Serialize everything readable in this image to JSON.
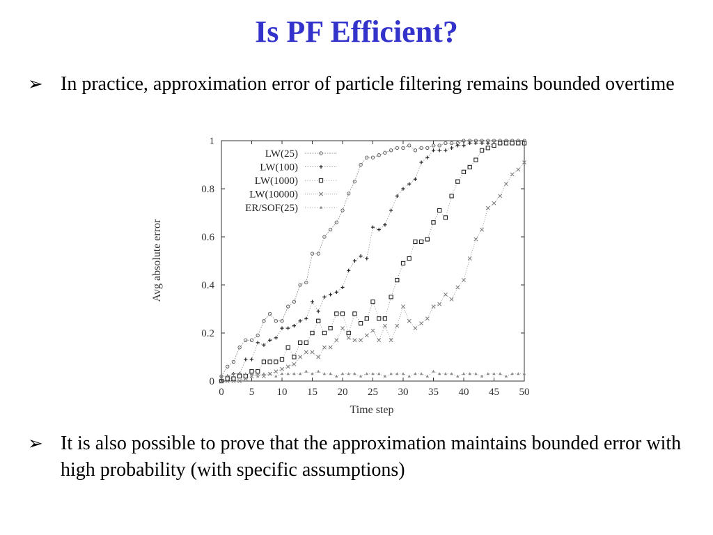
{
  "slide": {
    "title": "Is PF Efficient?",
    "bullets": [
      {
        "marker": "➢",
        "text": "In practice, approximation error of particle filtering remains bounded overtime"
      },
      {
        "marker": "➢",
        "text": "It is also possible to prove that the approximation maintains bounded error with high probability (with specific assumptions)"
      }
    ]
  },
  "chart_data": {
    "type": "line",
    "title": "",
    "xlabel": "Time step",
    "ylabel": "Avg absolute error",
    "xlim": [
      0,
      50
    ],
    "ylim": [
      0,
      1
    ],
    "xticks": [
      0,
      5,
      10,
      15,
      20,
      25,
      30,
      35,
      40,
      45,
      50
    ],
    "yticks": [
      0,
      0.2,
      0.4,
      0.6,
      0.8,
      1
    ],
    "grid": false,
    "legend_position": "top-left",
    "x": [
      0,
      1,
      2,
      3,
      4,
      5,
      6,
      7,
      8,
      9,
      10,
      11,
      12,
      13,
      14,
      15,
      16,
      17,
      18,
      19,
      20,
      21,
      22,
      23,
      24,
      25,
      26,
      27,
      28,
      29,
      30,
      31,
      32,
      33,
      34,
      35,
      36,
      37,
      38,
      39,
      40,
      41,
      42,
      43,
      44,
      45,
      46,
      47,
      48,
      49,
      50
    ],
    "series": [
      {
        "name": "LW(25)",
        "marker": "circle-dot",
        "values": [
          0.02,
          0.06,
          0.08,
          0.14,
          0.17,
          0.17,
          0.19,
          0.25,
          0.28,
          0.25,
          0.25,
          0.31,
          0.33,
          0.4,
          0.41,
          0.53,
          0.53,
          0.6,
          0.63,
          0.66,
          0.71,
          0.78,
          0.83,
          0.9,
          0.93,
          0.93,
          0.94,
          0.95,
          0.96,
          0.97,
          0.97,
          0.98,
          0.96,
          0.97,
          0.97,
          0.98,
          0.98,
          0.99,
          0.99,
          0.99,
          1.0,
          1.0,
          1.0,
          1.0,
          1.0,
          1.0,
          1.0,
          1.0,
          1.0,
          1.0,
          1.0
        ]
      },
      {
        "name": "LW(100)",
        "marker": "plus",
        "values": [
          0.0,
          0.02,
          0.03,
          0.03,
          0.09,
          0.09,
          0.16,
          0.15,
          0.17,
          0.18,
          0.22,
          0.22,
          0.23,
          0.25,
          0.26,
          0.33,
          0.29,
          0.35,
          0.36,
          0.37,
          0.39,
          0.46,
          0.5,
          0.52,
          0.51,
          0.64,
          0.63,
          0.65,
          0.71,
          0.77,
          0.8,
          0.82,
          0.84,
          0.91,
          0.93,
          0.96,
          0.96,
          0.96,
          0.97,
          0.98,
          0.98,
          0.99,
          0.99,
          0.99,
          0.99,
          0.98,
          0.99,
          0.99,
          0.99,
          0.99,
          0.99
        ]
      },
      {
        "name": "LW(1000)",
        "marker": "square",
        "values": [
          0.0,
          0.01,
          0.01,
          0.02,
          0.02,
          0.04,
          0.04,
          0.08,
          0.08,
          0.08,
          0.09,
          0.14,
          0.1,
          0.16,
          0.16,
          0.2,
          0.25,
          0.2,
          0.22,
          0.28,
          0.28,
          0.2,
          0.28,
          0.24,
          0.26,
          0.33,
          0.26,
          0.26,
          0.35,
          0.42,
          0.49,
          0.51,
          0.58,
          0.58,
          0.59,
          0.66,
          0.71,
          0.68,
          0.77,
          0.83,
          0.87,
          0.89,
          0.92,
          0.96,
          0.97,
          0.98,
          0.99,
          0.99,
          0.99,
          0.99,
          0.99
        ]
      },
      {
        "name": "LW(10000)",
        "marker": "x",
        "values": [
          0.0,
          0.0,
          0.0,
          0.0,
          0.01,
          0.02,
          0.03,
          0.02,
          0.03,
          0.04,
          0.05,
          0.06,
          0.07,
          0.1,
          0.12,
          0.12,
          0.1,
          0.14,
          0.14,
          0.17,
          0.22,
          0.18,
          0.17,
          0.17,
          0.19,
          0.21,
          0.17,
          0.23,
          0.17,
          0.23,
          0.31,
          0.25,
          0.22,
          0.24,
          0.26,
          0.31,
          0.32,
          0.36,
          0.34,
          0.39,
          0.42,
          0.51,
          0.59,
          0.63,
          0.72,
          0.74,
          0.77,
          0.82,
          0.86,
          0.88,
          0.91
        ]
      },
      {
        "name": "ER/SOF(25)",
        "marker": "triangle",
        "values": [
          0.02,
          0.02,
          0.03,
          0.03,
          0.03,
          0.03,
          0.02,
          0.03,
          0.03,
          0.02,
          0.03,
          0.03,
          0.03,
          0.03,
          0.04,
          0.03,
          0.04,
          0.03,
          0.03,
          0.02,
          0.03,
          0.03,
          0.03,
          0.02,
          0.03,
          0.03,
          0.03,
          0.02,
          0.03,
          0.03,
          0.03,
          0.02,
          0.03,
          0.03,
          0.02,
          0.04,
          0.03,
          0.03,
          0.03,
          0.02,
          0.03,
          0.03,
          0.03,
          0.02,
          0.03,
          0.03,
          0.03,
          0.02,
          0.03,
          0.03,
          0.03
        ]
      }
    ]
  },
  "colors": {
    "title": "#3333cc",
    "text": "#000000",
    "plot": "#333333",
    "line": "#999999"
  }
}
